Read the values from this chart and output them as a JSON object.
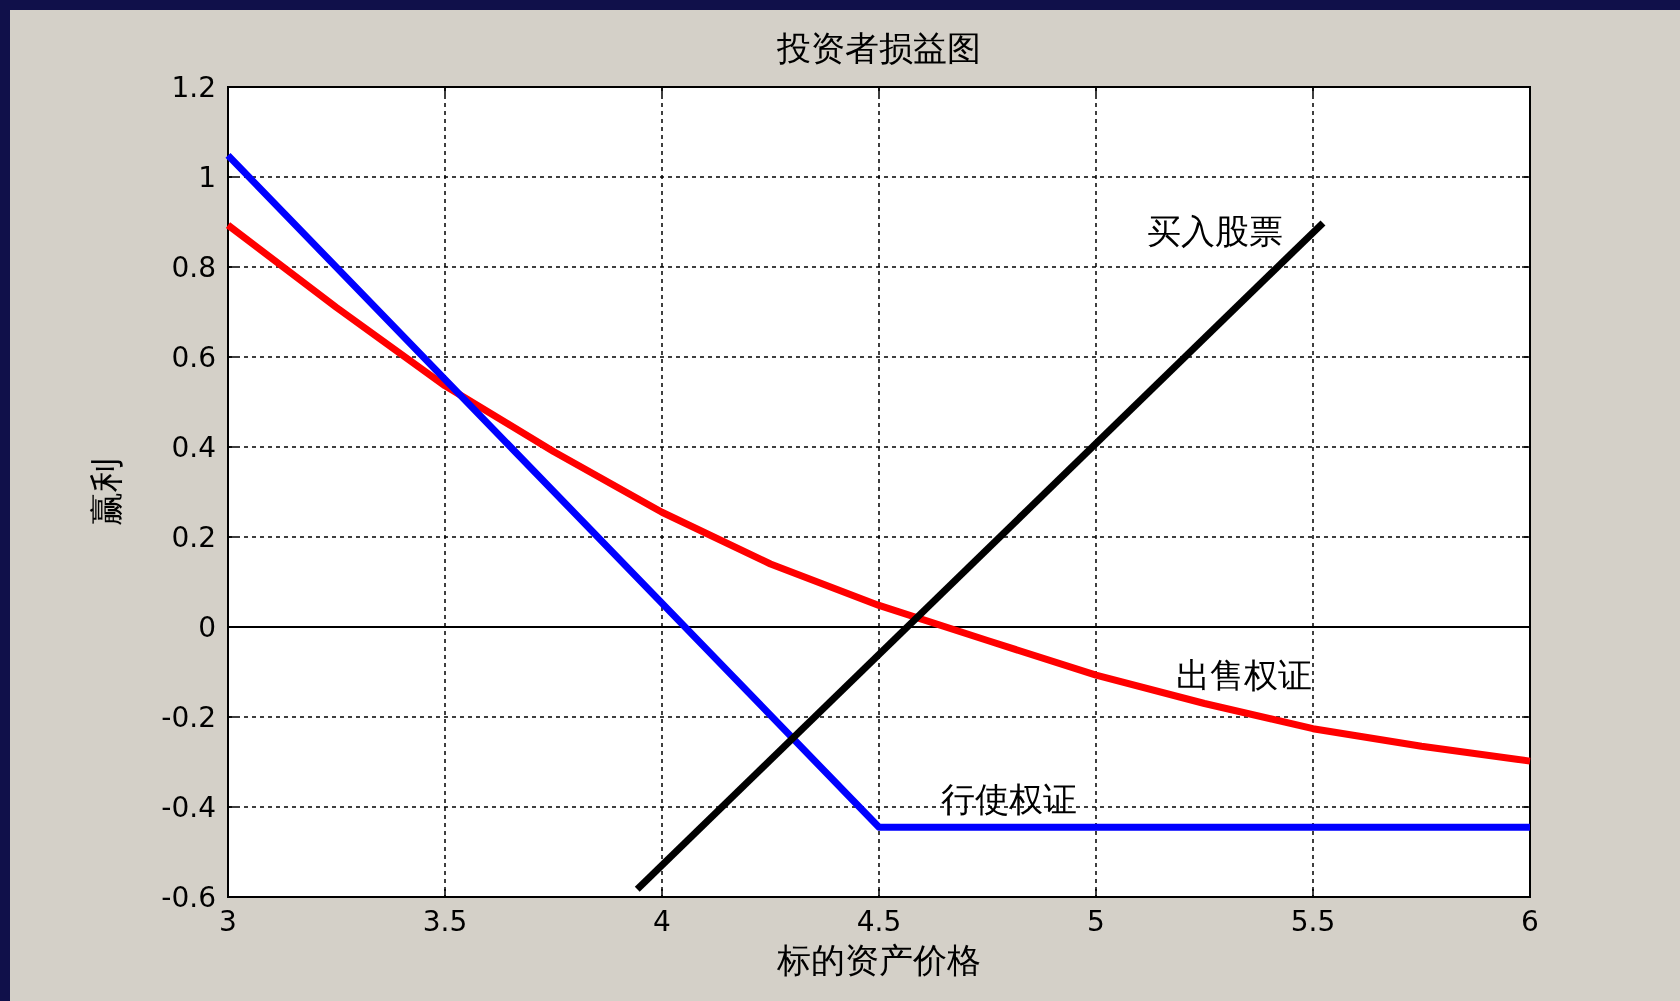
{
  "chart_data": {
    "type": "line",
    "title": "投资者损益图",
    "xlabel": "标的资产价格",
    "ylabel": "赢利",
    "xlim": [
      3,
      6
    ],
    "ylim": [
      -0.6,
      1.2
    ],
    "xticks": [
      3,
      3.5,
      4,
      4.5,
      5,
      5.5,
      6
    ],
    "yticks": [
      -0.6,
      -0.4,
      -0.2,
      0,
      0.2,
      0.4,
      0.6,
      0.8,
      1,
      1.2
    ],
    "grid": true,
    "ref_lines": [
      {
        "axis": "y",
        "value": 0,
        "color": "#000000"
      }
    ],
    "series": [
      {
        "name": "出售权证",
        "color": "#ff0000",
        "x": [
          3,
          3.25,
          3.5,
          3.75,
          4,
          4.25,
          4.5,
          4.75,
          5,
          5.25,
          5.5,
          5.75,
          6
        ],
        "values": [
          0.893,
          0.71,
          0.536,
          0.39,
          0.255,
          0.14,
          0.048,
          -0.03,
          -0.107,
          -0.17,
          -0.226,
          -0.265,
          -0.298
        ]
      },
      {
        "name": "行使权证",
        "color": "#0000ff",
        "x": [
          3,
          4.5,
          6
        ],
        "values": [
          1.048,
          -0.445,
          -0.445
        ]
      },
      {
        "name": "买入股票",
        "color": "#000000",
        "x": [
          3.943,
          5.523
        ],
        "values": [
          -0.583,
          0.898
        ]
      }
    ]
  }
}
